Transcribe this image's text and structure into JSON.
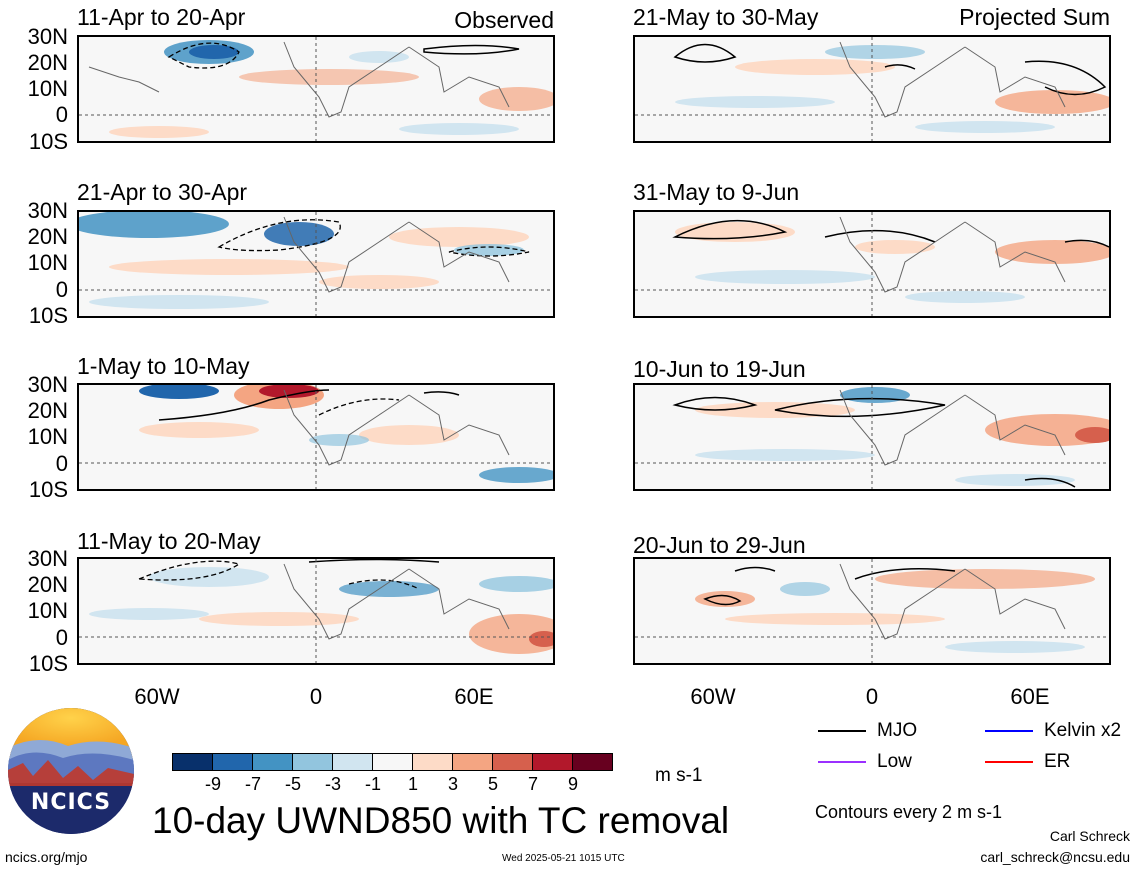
{
  "panels_left": [
    {
      "title": "11-Apr to 20-Apr",
      "corner": "Observed"
    },
    {
      "title": "21-Apr to 30-Apr",
      "corner": ""
    },
    {
      "title": "1-May to 10-May",
      "corner": ""
    },
    {
      "title": "11-May to 20-May",
      "corner": ""
    }
  ],
  "panels_right": [
    {
      "title": "21-May to 30-May",
      "corner": "Projected Sum"
    },
    {
      "title": "31-May to 9-Jun",
      "corner": ""
    },
    {
      "title": "10-Jun to 19-Jun",
      "corner": ""
    },
    {
      "title": "20-Jun to 29-Jun",
      "corner": ""
    }
  ],
  "lat_labels": [
    "30N",
    "20N",
    "10N",
    "0",
    "10S"
  ],
  "lon_labels": [
    "60W",
    "0",
    "60E"
  ],
  "colorbar": {
    "ticks": [
      "-9",
      "-7",
      "-5",
      "-3",
      "-1",
      "1",
      "3",
      "5",
      "7",
      "9"
    ],
    "colors": [
      "#08306b",
      "#2166ac",
      "#4393c3",
      "#92c5de",
      "#d1e5f0",
      "#f7f7f7",
      "#fddbc7",
      "#f4a582",
      "#d6604d",
      "#b2182b",
      "#67001f"
    ],
    "units": "m s-1"
  },
  "main_title": "10-day UWND850 with TC removal",
  "legend": [
    {
      "label": "MJO",
      "color": "#000000"
    },
    {
      "label": "Kelvin x2",
      "color": "#0000ff"
    },
    {
      "label": "Low",
      "color": "#9b30ff"
    },
    {
      "label": "ER",
      "color": "#ff0000"
    }
  ],
  "contours_note": "Contours every 2 m s-1",
  "credit_name": "Carl Schreck",
  "credit_email": "carl_schreck@ncsu.edu",
  "logo_text": "NCICS",
  "footer_url": "ncics.org/mjo",
  "footer_timestamp": "Wed 2025-05-21 1015 UTC"
}
